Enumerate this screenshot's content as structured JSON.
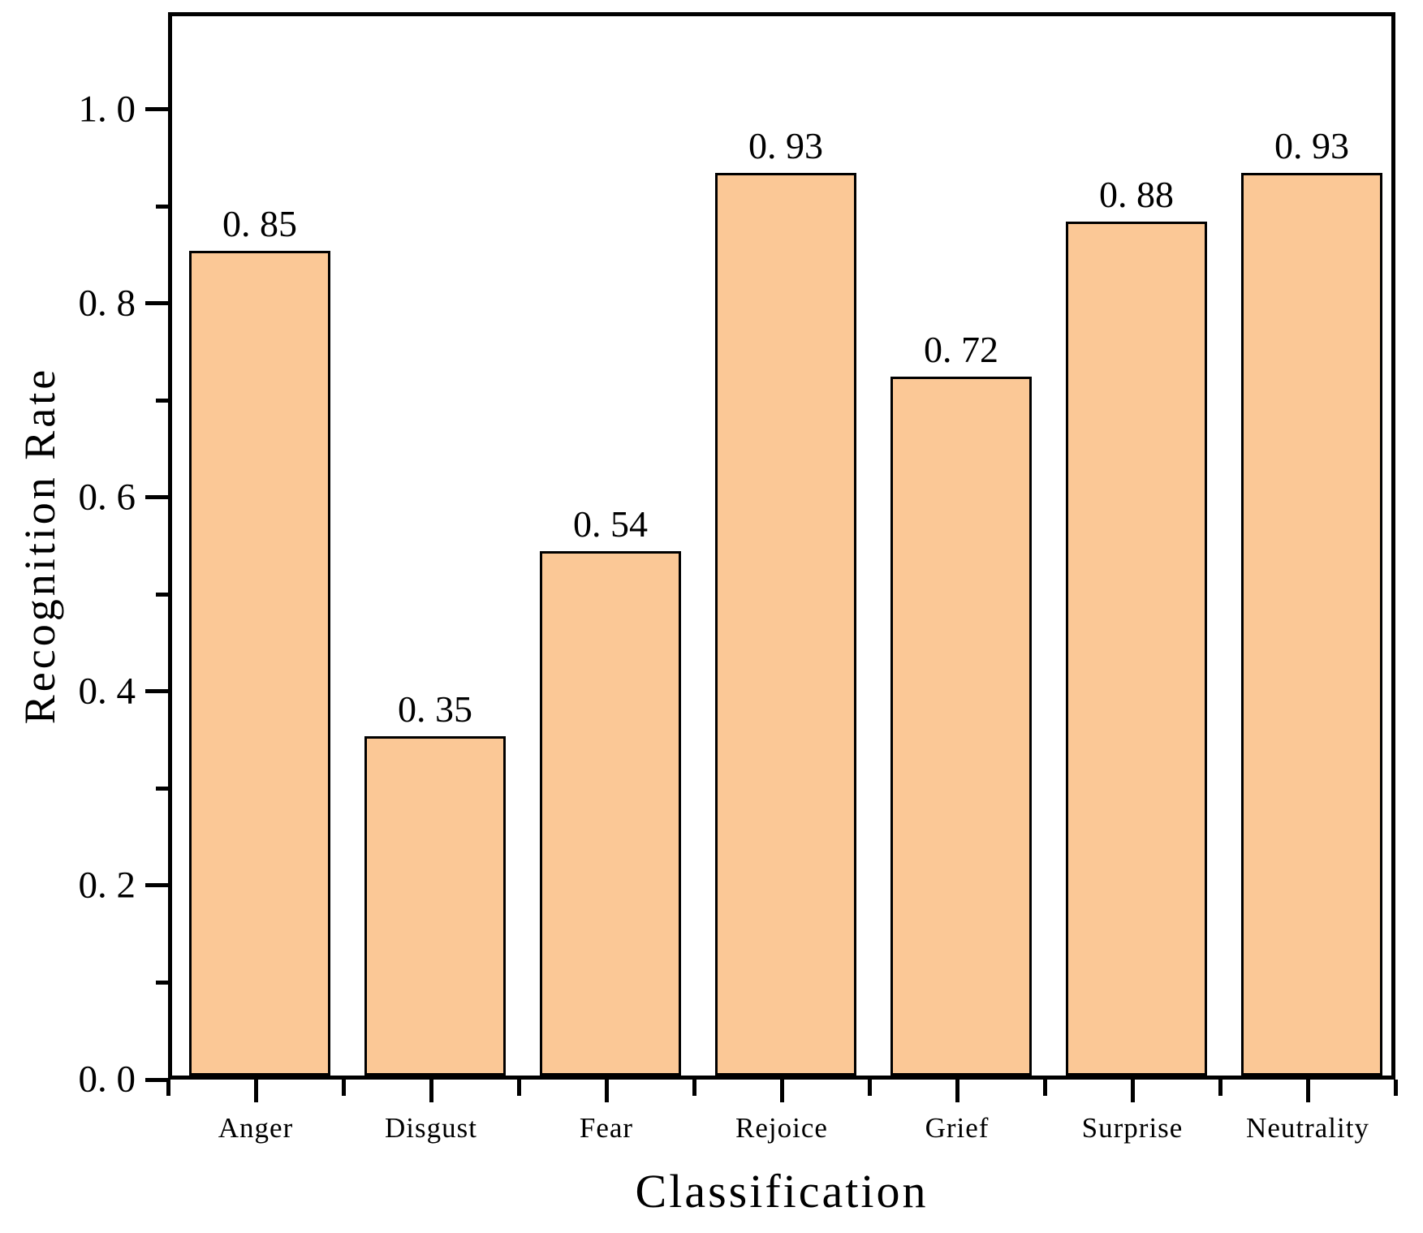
{
  "chart_data": {
    "type": "bar",
    "categories": [
      "Anger",
      "Disgust",
      "Fear",
      "Rejoice",
      "Grief",
      "Surprise",
      "Neutrality"
    ],
    "values": [
      0.85,
      0.35,
      0.54,
      0.93,
      0.72,
      0.88,
      0.93
    ],
    "bar_value_labels": [
      "0. 85",
      "0. 35",
      "0. 54",
      "0. 93",
      "0. 72",
      "0. 88",
      "0. 93"
    ],
    "xlabel": "Classification",
    "ylabel": "Recognition Rate",
    "ylim": [
      0,
      1.1
    ],
    "y_major_ticks": [
      0.0,
      0.2,
      0.4,
      0.6,
      0.8,
      1.0
    ],
    "y_tick_labels": [
      "0. 0",
      "0. 2",
      "0. 4",
      "0. 6",
      "0. 8",
      "1. 0"
    ],
    "y_minor_ticks": [
      0.1,
      0.3,
      0.5,
      0.7,
      0.9
    ],
    "grid": false,
    "legend": "none",
    "colors": {
      "bar_fill": "#FBC896",
      "bar_edge": "#000000",
      "axis": "#000000",
      "text": "#000000",
      "background": "#FFFFFF"
    }
  }
}
